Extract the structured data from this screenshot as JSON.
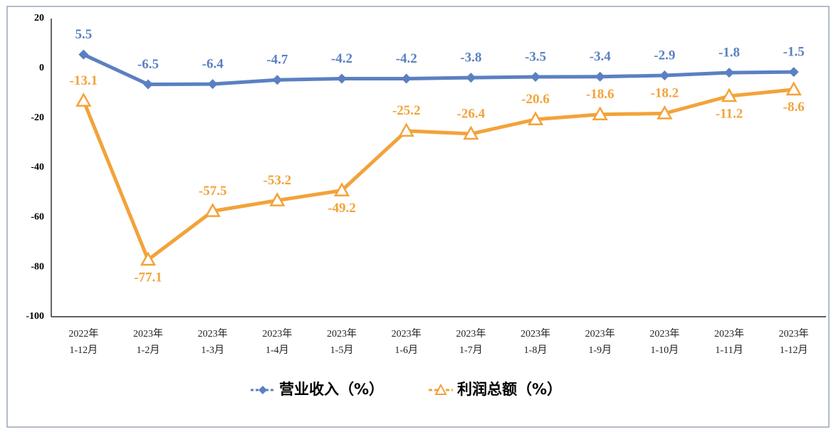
{
  "chart_data": {
    "type": "line",
    "categories": [
      [
        "2022年",
        "1-12月"
      ],
      [
        "2023年",
        "1-2月"
      ],
      [
        "2023年",
        "1-3月"
      ],
      [
        "2023年",
        "1-4月"
      ],
      [
        "2023年",
        "1-5月"
      ],
      [
        "2023年",
        "1-6月"
      ],
      [
        "2023年",
        "1-7月"
      ],
      [
        "2023年",
        "1-8月"
      ],
      [
        "2023年",
        "1-9月"
      ],
      [
        "2023年",
        "1-10月"
      ],
      [
        "2023年",
        "1-11月"
      ],
      [
        "2023年",
        "1-12月"
      ]
    ],
    "series": [
      {
        "name": "营业收入（%）",
        "color": "#5b80c2",
        "values": [
          5.5,
          -6.5,
          -6.4,
          -4.7,
          -4.2,
          -4.2,
          -3.8,
          -3.5,
          -3.4,
          -2.9,
          -1.8,
          -1.5
        ]
      },
      {
        "name": "利润总额（%）",
        "color": "#f2a33a",
        "values": [
          -13.1,
          -77.1,
          -57.5,
          -53.2,
          -49.2,
          -25.2,
          -26.4,
          -20.6,
          -18.6,
          -18.2,
          -11.2,
          -8.6
        ]
      }
    ],
    "ylim": [
      -100,
      20
    ],
    "yticks": [
      20,
      0,
      -20,
      -40,
      -60,
      -80,
      -100
    ],
    "grid": false,
    "legend": "bottom"
  }
}
